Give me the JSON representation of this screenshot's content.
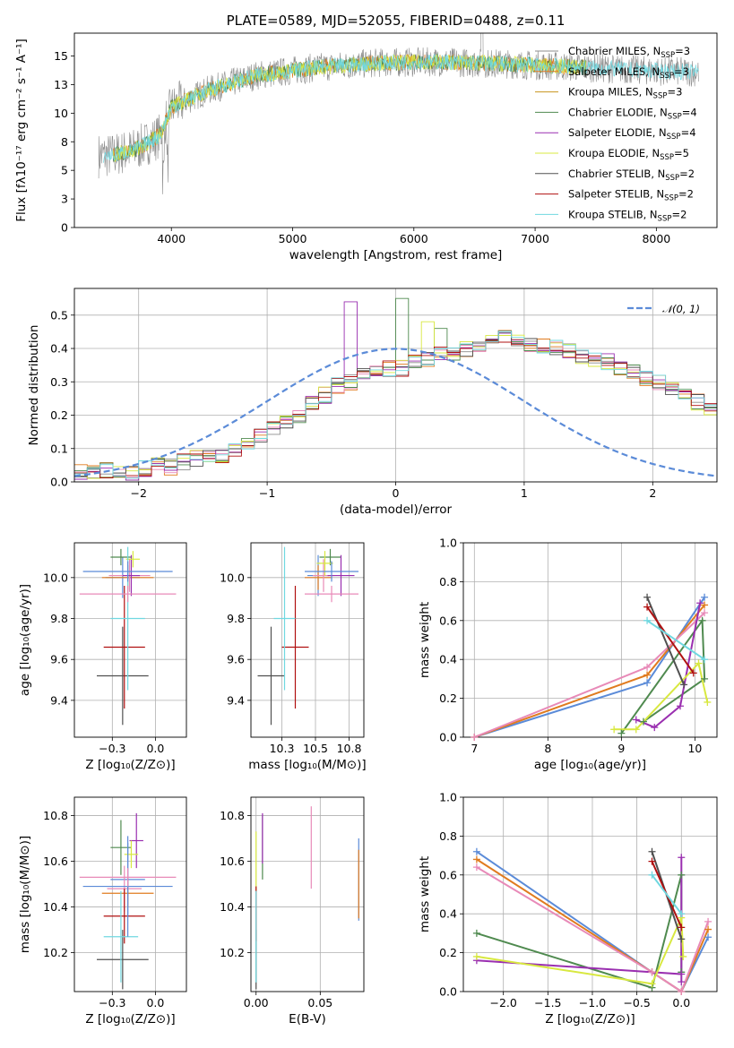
{
  "colors": {
    "chabrier_miles": "#8c8c8c",
    "salpeter_miles": "#e07b1f",
    "kroupa_miles": "#c8941e",
    "chabrier_elodie": "#4f8a4f",
    "salpeter_elodie": "#9a2fb0",
    "kroupa_elodie": "#d8e840",
    "chabrier_stelib": "#505050",
    "salpeter_stelib": "#b01010",
    "kroupa_stelib": "#70d8e0",
    "gauss": "#5b8bd8",
    "grid": "#b0b0b0"
  },
  "chart_data": [
    {
      "id": "spectrum",
      "type": "line",
      "title": "PLATE=0589, MJD=52055, FIBERID=0488, z=0.11",
      "xlabel": "wavelength [Angstrom, rest frame]",
      "ylabel": "Flux [fλ10⁻¹⁷ erg cm⁻² s⁻¹ A⁻¹]",
      "xlim": [
        3200,
        8500
      ],
      "ylim": [
        0,
        17
      ],
      "xticks": [
        4000,
        5000,
        6000,
        7000,
        8000
      ],
      "yticks": [
        0.0,
        2.5,
        5.0,
        7.5,
        10.0,
        12.5,
        15.0
      ],
      "grid": false,
      "legend_position": "right",
      "legend": [
        {
          "label": "Chabrier MILES, N",
          "sub": "SSP",
          "suffix": "=3",
          "color": "#8c8c8c"
        },
        {
          "label": "Salpeter MILES, N",
          "sub": "SSP",
          "suffix": "=3",
          "color": "#e07b1f"
        },
        {
          "label": "Kroupa MILES, N",
          "sub": "SSP",
          "suffix": "=3",
          "color": "#c8941e"
        },
        {
          "label": "Chabrier ELODIE, N",
          "sub": "SSP",
          "suffix": "=4",
          "color": "#4f8a4f"
        },
        {
          "label": "Salpeter ELODIE, N",
          "sub": "SSP",
          "suffix": "=4",
          "color": "#9a2fb0"
        },
        {
          "label": "Kroupa ELODIE, N",
          "sub": "SSP",
          "suffix": "=5",
          "color": "#d8e840"
        },
        {
          "label": "Chabrier STELIB, N",
          "sub": "SSP",
          "suffix": "=2",
          "color": "#505050"
        },
        {
          "label": "Salpeter STELIB, N",
          "sub": "SSP",
          "suffix": "=2",
          "color": "#b01010"
        },
        {
          "label": "Kroupa STELIB, N",
          "sub": "SSP",
          "suffix": "=2",
          "color": "#70d8e0"
        }
      ],
      "continuum": [
        [
          3500,
          6.3
        ],
        [
          3700,
          6.8
        ],
        [
          3900,
          8.0
        ],
        [
          4000,
          10.5
        ],
        [
          4300,
          12.0
        ],
        [
          4700,
          13.3
        ],
        [
          5200,
          14.0
        ],
        [
          5700,
          14.4
        ],
        [
          6200,
          14.5
        ],
        [
          6800,
          14.3
        ],
        [
          7400,
          14.0
        ],
        [
          8000,
          13.7
        ],
        [
          8300,
          13.6
        ]
      ],
      "observed_range": [
        3400,
        8350
      ],
      "model_range": [
        3520,
        7420
      ]
    },
    {
      "id": "residuals",
      "type": "histogram",
      "xlabel": "(data-model)/error",
      "ylabel": "Normed distribution",
      "xlim": [
        -2.5,
        2.5
      ],
      "ylim": [
        0,
        0.58
      ],
      "xticks": [
        -2,
        -1,
        0,
        1,
        2
      ],
      "yticks": [
        0.0,
        0.1,
        0.2,
        0.3,
        0.4,
        0.5
      ],
      "grid": true,
      "legend_position": "top-right",
      "legend": [
        {
          "label": "𝒩(0, 1)",
          "color": "#5b8bd8",
          "style": "dashed"
        }
      ],
      "bin_width": 0.1,
      "bin_start": -2.5,
      "base_hist": [
        0.03,
        0.03,
        0.035,
        0.035,
        0.03,
        0.04,
        0.05,
        0.045,
        0.06,
        0.07,
        0.08,
        0.08,
        0.1,
        0.12,
        0.14,
        0.16,
        0.18,
        0.2,
        0.24,
        0.26,
        0.29,
        0.3,
        0.32,
        0.33,
        0.34,
        0.34,
        0.36,
        0.37,
        0.38,
        0.39,
        0.4,
        0.41,
        0.42,
        0.43,
        0.42,
        0.41,
        0.41,
        0.4,
        0.39,
        0.38,
        0.37,
        0.36,
        0.34,
        0.33,
        0.31,
        0.3,
        0.28,
        0.26,
        0.24,
        0.22,
        0.2,
        0.18,
        0.17,
        0.15,
        0.13,
        0.12,
        0.11,
        0.1,
        0.09,
        0.085,
        0.08,
        0.07,
        0.065,
        0.06,
        0.05,
        0.045,
        0.04,
        0.035,
        0.03,
        0.03
      ],
      "peaks": [
        {
          "series": 4,
          "x": -0.4,
          "y": 0.54
        },
        {
          "series": 3,
          "x": 0.0,
          "y": 0.55
        },
        {
          "series": 5,
          "x": 0.2,
          "y": 0.48
        },
        {
          "series": 3,
          "x": 0.3,
          "y": 0.46
        }
      ]
    },
    {
      "id": "age-vs-z",
      "type": "errorbar",
      "xlabel": "Z [log₁₀(Z/Z⊙)]",
      "ylabel": "age  [log₁₀(age/yr)]",
      "xlim": [
        -0.47,
        0.18
      ],
      "ylim": [
        9.22,
        10.17
      ],
      "xticks": [
        -0.25,
        0.0
      ],
      "yticks": [
        9.4,
        9.6,
        9.8,
        10.0
      ],
      "grid": true,
      "points": [
        {
          "series": 0,
          "x": -0.19,
          "y": 10.0,
          "xerr": 0.1,
          "yerr": 0.1
        },
        {
          "series": 1,
          "x": -0.16,
          "y": 10.0,
          "xerr": 0.15,
          "yerr": 0.06
        },
        {
          "series": 2,
          "x": -0.15,
          "y": 10.01,
          "xerr": 0.12,
          "yerr": 0.08
        },
        {
          "series": 3,
          "x": -0.2,
          "y": 10.1,
          "xerr": 0.06,
          "yerr": 0.04
        },
        {
          "series": 4,
          "x": -0.14,
          "y": 10.01,
          "xerr": 0.05,
          "yerr": 0.1
        },
        {
          "series": 5,
          "x": -0.13,
          "y": 10.09,
          "xerr": 0.04,
          "yerr": 0.04
        },
        {
          "series": 6,
          "x": -0.19,
          "y": 9.52,
          "xerr": 0.15,
          "yerr": 0.24
        },
        {
          "series": 7,
          "x": -0.18,
          "y": 9.66,
          "xerr": 0.12,
          "yerr": 0.3
        },
        {
          "series": 8,
          "x": -0.16,
          "y": 9.8,
          "xerr": 0.1,
          "yerr": 0.35
        },
        {
          "series": 9,
          "x": -0.16,
          "y": 10.03,
          "xerr": 0.26,
          "yerr": 0.05
        },
        {
          "series": 10,
          "x": -0.16,
          "y": 9.92,
          "xerr": 0.28,
          "yerr": 0.04
        }
      ]
    },
    {
      "id": "age-vs-mass",
      "type": "errorbar",
      "xlabel": "mass [log₁₀(M/M⊙)]",
      "ylabel": "",
      "xlim": [
        10.02,
        10.86
      ],
      "ylim": [
        9.22,
        10.17
      ],
      "xticks": [
        10.25,
        10.5,
        10.75
      ],
      "yticks": [
        9.4,
        9.6,
        9.8,
        10.0
      ],
      "grid": true,
      "points": [
        {
          "series": 0,
          "x": 10.52,
          "y": 10.01,
          "xerr": 0.08,
          "yerr": 0.1
        },
        {
          "series": 1,
          "x": 10.52,
          "y": 10.0,
          "xerr": 0.1,
          "yerr": 0.06
        },
        {
          "series": 2,
          "x": 10.56,
          "y": 10.01,
          "xerr": 0.08,
          "yerr": 0.08
        },
        {
          "series": 3,
          "x": 10.61,
          "y": 10.1,
          "xerr": 0.08,
          "yerr": 0.04
        },
        {
          "series": 4,
          "x": 10.69,
          "y": 10.01,
          "xerr": 0.1,
          "yerr": 0.1
        },
        {
          "series": 5,
          "x": 10.57,
          "y": 10.07,
          "xerr": 0.06,
          "yerr": 0.06
        },
        {
          "series": 6,
          "x": 10.17,
          "y": 9.52,
          "xerr": 0.1,
          "yerr": 0.24
        },
        {
          "series": 7,
          "x": 10.35,
          "y": 9.66,
          "xerr": 0.1,
          "yerr": 0.3
        },
        {
          "series": 8,
          "x": 10.27,
          "y": 9.8,
          "xerr": 0.08,
          "yerr": 0.35
        },
        {
          "series": 9,
          "x": 10.62,
          "y": 10.03,
          "xerr": 0.2,
          "yerr": 0.05
        },
        {
          "series": 10,
          "x": 10.62,
          "y": 9.92,
          "xerr": 0.2,
          "yerr": 0.04
        }
      ]
    },
    {
      "id": "mass-weight-vs-age",
      "type": "line",
      "xlabel": "age  [log₁₀(age/yr)]",
      "ylabel": "mass weight",
      "xlim": [
        6.85,
        10.3
      ],
      "ylim": [
        0,
        1
      ],
      "xticks": [
        7,
        8,
        9,
        10
      ],
      "yticks": [
        0.0,
        0.2,
        0.4,
        0.6,
        0.8,
        1.0
      ],
      "grid": true,
      "series": [
        {
          "series": 0,
          "points": [
            [
              7.0,
              0.0
            ],
            [
              9.35,
              0.28
            ],
            [
              10.13,
              0.72
            ]
          ]
        },
        {
          "series": 1,
          "points": [
            [
              7.0,
              0.0
            ],
            [
              9.35,
              0.32
            ],
            [
              10.13,
              0.68
            ]
          ]
        },
        {
          "series": 2,
          "points": [
            [
              7.0,
              0.0
            ],
            [
              9.35,
              0.36
            ],
            [
              10.13,
              0.64
            ]
          ]
        },
        {
          "series": 3,
          "points": [
            [
              9.0,
              0.02
            ],
            [
              10.1,
              0.6
            ],
            [
              10.13,
              0.3
            ],
            [
              9.3,
              0.08
            ]
          ]
        },
        {
          "series": 4,
          "points": [
            [
              9.2,
              0.09
            ],
            [
              9.45,
              0.05
            ],
            [
              9.8,
              0.16
            ],
            [
              10.07,
              0.69
            ]
          ]
        },
        {
          "series": 5,
          "points": [
            [
              8.9,
              0.04
            ],
            [
              9.2,
              0.04
            ],
            [
              10.05,
              0.38
            ],
            [
              10.17,
              0.18
            ]
          ]
        },
        {
          "series": 6,
          "points": [
            [
              9.35,
              0.72
            ],
            [
              9.85,
              0.27
            ]
          ]
        },
        {
          "series": 7,
          "points": [
            [
              9.35,
              0.67
            ],
            [
              9.98,
              0.33
            ]
          ]
        },
        {
          "series": 8,
          "points": [
            [
              9.35,
              0.6
            ],
            [
              10.13,
              0.4
            ]
          ]
        }
      ]
    },
    {
      "id": "mass-vs-z",
      "type": "errorbar",
      "xlabel": "Z [log₁₀(Z/Z⊙)]",
      "ylabel": "mass [log₁₀(M/M⊙)]",
      "xlim": [
        -0.47,
        0.18
      ],
      "ylim": [
        10.03,
        10.88
      ],
      "xticks": [
        -0.25,
        0.0
      ],
      "yticks": [
        10.2,
        10.4,
        10.6,
        10.8
      ],
      "grid": true,
      "points": [
        {
          "series": 0,
          "x": -0.16,
          "y": 10.52,
          "xerr": 0.1,
          "yerr": 0.16
        },
        {
          "series": 1,
          "x": -0.16,
          "y": 10.46,
          "xerr": 0.15,
          "yerr": 0.06
        },
        {
          "series": 2,
          "x": -0.18,
          "y": 10.48,
          "xerr": 0.1,
          "yerr": 0.1
        },
        {
          "series": 3,
          "x": -0.2,
          "y": 10.66,
          "xerr": 0.06,
          "yerr": 0.12
        },
        {
          "series": 4,
          "x": -0.11,
          "y": 10.69,
          "xerr": 0.04,
          "yerr": 0.12
        },
        {
          "series": 5,
          "x": -0.14,
          "y": 10.63,
          "xerr": 0.04,
          "yerr": 0.06
        },
        {
          "series": 6,
          "x": -0.19,
          "y": 10.17,
          "xerr": 0.15,
          "yerr": 0.13
        },
        {
          "series": 7,
          "x": -0.18,
          "y": 10.36,
          "xerr": 0.12,
          "yerr": 0.12
        },
        {
          "series": 8,
          "x": -0.2,
          "y": 10.27,
          "xerr": 0.1,
          "yerr": 0.2
        },
        {
          "series": 9,
          "x": -0.16,
          "y": 10.49,
          "xerr": 0.26,
          "yerr": 0.22
        },
        {
          "series": 10,
          "x": -0.16,
          "y": 10.53,
          "xerr": 0.28,
          "yerr": 0.04
        }
      ]
    },
    {
      "id": "mass-vs-ebv",
      "type": "errorbar",
      "xlabel": "E(B-V)",
      "ylabel": "",
      "xlim": [
        -0.004,
        0.084
      ],
      "ylim": [
        10.03,
        10.88
      ],
      "xticks": [
        0.0,
        0.05
      ],
      "yticks": [
        10.2,
        10.4,
        10.6,
        10.8
      ],
      "grid": true,
      "points": [
        {
          "series": 0,
          "x": 0.08,
          "y": 10.52,
          "xerr": 0,
          "yerr": 0.18
        },
        {
          "series": 1,
          "x": 0.08,
          "y": 10.5,
          "xerr": 0,
          "yerr": 0.15
        },
        {
          "series": 2,
          "x": 0.043,
          "y": 10.66,
          "xerr": 0,
          "yerr": 0.18
        },
        {
          "series": 3,
          "x": 0.005,
          "y": 10.66,
          "xerr": 0,
          "yerr": 0.14
        },
        {
          "series": 4,
          "x": 0.005,
          "y": 10.7,
          "xerr": 0,
          "yerr": 0.11
        },
        {
          "series": 5,
          "x": 0.0,
          "y": 10.6,
          "xerr": 0,
          "yerr": 0.13
        },
        {
          "series": 6,
          "x": 0.0,
          "y": 10.17,
          "xerr": 0,
          "yerr": 0.13
        },
        {
          "series": 7,
          "x": 0.0,
          "y": 10.37,
          "xerr": 0,
          "yerr": 0.12
        },
        {
          "series": 8,
          "x": 0.0,
          "y": 10.27,
          "xerr": 0,
          "yerr": 0.2
        }
      ]
    },
    {
      "id": "mass-weight-vs-z",
      "type": "line",
      "xlabel": "Z [log₁₀(Z/Z⊙)]",
      "ylabel": "mass weight",
      "xlim": [
        -2.45,
        0.4
      ],
      "ylim": [
        0,
        1
      ],
      "xticks": [
        -2.0,
        -1.5,
        -1.0,
        -0.5,
        0.0
      ],
      "yticks": [
        0.0,
        0.2,
        0.4,
        0.6,
        0.8,
        1.0
      ],
      "grid": true,
      "series": [
        {
          "series": 0,
          "points": [
            [
              -2.3,
              0.72
            ],
            [
              -0.33,
              0.1
            ],
            [
              0.0,
              0.0
            ],
            [
              0.3,
              0.28
            ]
          ]
        },
        {
          "series": 1,
          "points": [
            [
              -2.3,
              0.68
            ],
            [
              -0.33,
              0.1
            ],
            [
              0.0,
              0.0
            ],
            [
              0.3,
              0.32
            ]
          ]
        },
        {
          "series": 2,
          "points": [
            [
              -2.3,
              0.64
            ],
            [
              -0.33,
              0.1
            ],
            [
              0.0,
              0.0
            ],
            [
              0.3,
              0.36
            ]
          ]
        },
        {
          "series": 3,
          "points": [
            [
              -2.3,
              0.3
            ],
            [
              -0.33,
              0.02
            ],
            [
              0.0,
              0.6
            ],
            [
              0.0,
              0.1
            ]
          ]
        },
        {
          "series": 4,
          "points": [
            [
              -2.3,
              0.16
            ],
            [
              0.0,
              0.09
            ],
            [
              0.0,
              0.69
            ],
            [
              0.0,
              0.05
            ]
          ]
        },
        {
          "series": 5,
          "points": [
            [
              -2.3,
              0.18
            ],
            [
              -0.33,
              0.04
            ],
            [
              0.0,
              0.38
            ],
            [
              0.02,
              0.18
            ]
          ]
        },
        {
          "series": 6,
          "points": [
            [
              -0.33,
              0.72
            ],
            [
              0.0,
              0.27
            ]
          ]
        },
        {
          "series": 7,
          "points": [
            [
              -0.33,
              0.67
            ],
            [
              0.0,
              0.33
            ]
          ]
        },
        {
          "series": 8,
          "points": [
            [
              -0.33,
              0.6
            ],
            [
              0.0,
              0.4
            ]
          ]
        }
      ]
    }
  ]
}
